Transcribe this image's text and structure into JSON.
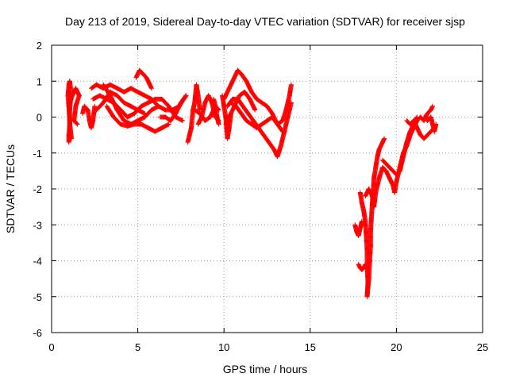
{
  "chart_data": {
    "type": "scatter",
    "title": "Day 213 of 2019, Sidereal Day-to-day VTEC variation (SDTVAR) for receiver sjsp",
    "xlabel": "GPS time / hours",
    "ylabel": "SDTVAR / TECUs",
    "xlim": [
      0,
      25
    ],
    "ylim": [
      -6,
      2
    ],
    "xticks": [
      0,
      5,
      10,
      15,
      20,
      25
    ],
    "yticks": [
      -6,
      -5,
      -4,
      -3,
      -2,
      -1,
      0,
      1,
      2
    ],
    "grid": true,
    "marker": "+",
    "series": [
      {
        "name": "SDTVAR",
        "color": "#ff0000",
        "tracks": [
          [
            [
              1.0,
              -0.7
            ],
            [
              1.0,
              -0.5
            ],
            [
              1.05,
              -0.2
            ],
            [
              1.05,
              0.2
            ],
            [
              1.1,
              0.5
            ],
            [
              1.1,
              0.8
            ],
            [
              1.05,
              1.0
            ],
            [
              1.0,
              0.9
            ],
            [
              0.95,
              0.6
            ],
            [
              1.0,
              0.3
            ],
            [
              1.05,
              -0.1
            ],
            [
              1.1,
              -0.4
            ],
            [
              1.15,
              -0.6
            ]
          ],
          [
            [
              1.0,
              0.3
            ],
            [
              1.2,
              0.6
            ],
            [
              1.4,
              0.8
            ],
            [
              1.6,
              0.6
            ],
            [
              1.4,
              0.3
            ],
            [
              1.3,
              -0.1
            ],
            [
              1.5,
              -0.2
            ]
          ],
          [
            [
              1.8,
              0.1
            ],
            [
              1.9,
              0.3
            ],
            [
              2.1,
              0.2
            ],
            [
              2.2,
              -0.1
            ],
            [
              2.3,
              -0.3
            ],
            [
              2.4,
              -0.1
            ],
            [
              2.5,
              0.3
            ]
          ],
          [
            [
              2.3,
              0.8
            ],
            [
              2.6,
              0.9
            ],
            [
              3.0,
              0.8
            ],
            [
              3.4,
              0.9
            ],
            [
              3.8,
              0.8
            ],
            [
              4.2,
              0.7
            ],
            [
              4.6,
              0.8
            ],
            [
              5.0,
              0.7
            ],
            [
              5.4,
              0.6
            ],
            [
              5.8,
              0.5
            ],
            [
              6.2,
              0.3
            ],
            [
              6.6,
              0.2
            ],
            [
              7.0,
              0.2
            ],
            [
              7.4,
              0.3
            ],
            [
              7.8,
              0.6
            ]
          ],
          [
            [
              2.4,
              0.5
            ],
            [
              2.8,
              0.6
            ],
            [
              3.2,
              0.5
            ],
            [
              3.6,
              0.4
            ],
            [
              4.0,
              0.2
            ],
            [
              4.4,
              0.0
            ],
            [
              4.8,
              0.1
            ],
            [
              5.2,
              0.3
            ],
            [
              5.6,
              0.4
            ],
            [
              6.0,
              0.5
            ],
            [
              6.4,
              0.5
            ],
            [
              6.8,
              0.3
            ],
            [
              7.2,
              0.0
            ],
            [
              7.6,
              -0.1
            ]
          ],
          [
            [
              3.0,
              0.9
            ],
            [
              3.4,
              0.6
            ],
            [
              3.8,
              0.2
            ],
            [
              4.2,
              -0.1
            ],
            [
              4.6,
              -0.2
            ],
            [
              5.0,
              -0.1
            ],
            [
              5.4,
              0.0
            ],
            [
              5.8,
              0.2
            ],
            [
              6.2,
              0.3
            ]
          ],
          [
            [
              3.2,
              0.3
            ],
            [
              3.6,
              0.0
            ],
            [
              4.0,
              -0.2
            ],
            [
              4.4,
              -0.25
            ],
            [
              4.8,
              -0.2
            ],
            [
              5.2,
              -0.2
            ],
            [
              5.6,
              -0.3
            ],
            [
              6.0,
              -0.4
            ],
            [
              6.4,
              -0.3
            ],
            [
              6.8,
              -0.2
            ]
          ],
          [
            [
              2.6,
              0.2
            ],
            [
              3.0,
              0.4
            ],
            [
              3.4,
              0.7
            ],
            [
              3.8,
              0.6
            ],
            [
              4.2,
              0.4
            ],
            [
              4.6,
              0.3
            ],
            [
              5.0,
              0.2
            ],
            [
              5.4,
              0.1
            ]
          ],
          [
            [
              4.9,
              1.1
            ],
            [
              5.1,
              1.3
            ],
            [
              5.3,
              1.2
            ],
            [
              5.5,
              1.1
            ],
            [
              5.7,
              0.9
            ],
            [
              5.8,
              0.8
            ]
          ],
          [
            [
              6.3,
              0.0
            ],
            [
              6.6,
              0.0
            ],
            [
              6.9,
              -0.1
            ],
            [
              7.2,
              0.1
            ],
            [
              7.5,
              0.4
            ],
            [
              7.8,
              0.6
            ]
          ],
          [
            [
              7.9,
              -0.7
            ],
            [
              8.0,
              -0.5
            ],
            [
              8.1,
              -0.3
            ],
            [
              8.2,
              0.2
            ],
            [
              8.3,
              0.4
            ],
            [
              8.4,
              0.9
            ],
            [
              8.5,
              0.6
            ],
            [
              8.6,
              0.2
            ]
          ],
          [
            [
              8.5,
              -0.2
            ],
            [
              8.7,
              0.0
            ],
            [
              8.9,
              0.4
            ],
            [
              9.1,
              0.6
            ],
            [
              9.3,
              0.4
            ],
            [
              9.5,
              0.0
            ],
            [
              9.7,
              -0.1
            ]
          ],
          [
            [
              8.3,
              0.2
            ],
            [
              8.6,
              0.1
            ],
            [
              8.9,
              -0.1
            ],
            [
              9.2,
              0.0
            ],
            [
              9.5,
              0.3
            ],
            [
              9.7,
              0.2
            ]
          ],
          [
            [
              9.4,
              0.5
            ],
            [
              9.5,
              0.3
            ],
            [
              9.6,
              0.0
            ],
            [
              9.7,
              -0.2
            ]
          ],
          [
            [
              9.9,
              0.6
            ],
            [
              10.0,
              0.3
            ],
            [
              10.1,
              0.0
            ],
            [
              10.15,
              -0.3
            ],
            [
              10.2,
              -0.6
            ],
            [
              10.3,
              -0.3
            ],
            [
              10.4,
              0.1
            ]
          ],
          [
            [
              10.0,
              0.5
            ],
            [
              10.3,
              0.8
            ],
            [
              10.6,
              1.1
            ],
            [
              10.8,
              1.3
            ],
            [
              11.0,
              1.2
            ],
            [
              11.3,
              1.0
            ],
            [
              11.6,
              0.7
            ],
            [
              11.9,
              0.5
            ],
            [
              12.2,
              0.4
            ],
            [
              12.5,
              0.3
            ],
            [
              12.8,
              0.1
            ],
            [
              13.1,
              -0.2
            ],
            [
              13.4,
              -0.1
            ],
            [
              13.6,
              0.2
            ],
            [
              13.8,
              0.6
            ],
            [
              13.9,
              0.9
            ]
          ],
          [
            [
              10.2,
              0.3
            ],
            [
              10.5,
              0.5
            ],
            [
              10.8,
              0.5
            ],
            [
              11.1,
              0.3
            ],
            [
              11.4,
              0.1
            ],
            [
              11.7,
              -0.1
            ],
            [
              12.0,
              -0.3
            ],
            [
              12.3,
              -0.5
            ],
            [
              12.6,
              -0.7
            ],
            [
              12.9,
              -0.9
            ],
            [
              13.1,
              -1.1
            ],
            [
              13.3,
              -0.8
            ],
            [
              13.5,
              -0.4
            ],
            [
              13.7,
              0.0
            ],
            [
              13.9,
              0.4
            ]
          ],
          [
            [
              10.4,
              0.4
            ],
            [
              10.7,
              0.3
            ],
            [
              11.0,
              0.1
            ],
            [
              11.3,
              -0.1
            ],
            [
              11.6,
              -0.2
            ],
            [
              11.9,
              -0.3
            ],
            [
              12.2,
              -0.2
            ],
            [
              12.5,
              -0.1
            ],
            [
              12.8,
              0.0
            ],
            [
              13.1,
              -0.2
            ],
            [
              13.4,
              -0.4
            ]
          ],
          [
            [
              10.1,
              -0.2
            ],
            [
              10.3,
              0.0
            ],
            [
              10.6,
              0.3
            ],
            [
              10.9,
              0.6
            ],
            [
              11.2,
              0.7
            ],
            [
              11.5,
              0.5
            ],
            [
              11.8,
              0.2
            ]
          ],
          [
            [
              17.6,
              -3.0
            ],
            [
              17.7,
              -3.2
            ],
            [
              17.8,
              -3.3
            ],
            [
              17.9,
              -3.1
            ],
            [
              18.0,
              -2.9
            ]
          ],
          [
            [
              17.8,
              -4.1
            ],
            [
              17.9,
              -4.2
            ],
            [
              18.0,
              -4.25
            ],
            [
              18.1,
              -4.2
            ],
            [
              18.2,
              -4.1
            ]
          ],
          [
            [
              17.9,
              -2.1
            ],
            [
              18.0,
              -2.4
            ],
            [
              18.1,
              -2.6
            ],
            [
              18.2,
              -2.9
            ],
            [
              18.25,
              -3.3
            ],
            [
              18.3,
              -3.7
            ],
            [
              18.3,
              -4.2
            ],
            [
              18.35,
              -4.6
            ],
            [
              18.3,
              -5.0
            ],
            [
              18.4,
              -4.5
            ],
            [
              18.45,
              -4.0
            ],
            [
              18.5,
              -3.6
            ],
            [
              18.5,
              -3.2
            ],
            [
              18.55,
              -2.8
            ],
            [
              18.6,
              -2.4
            ],
            [
              18.65,
              -2.1
            ],
            [
              18.7,
              -1.7
            ],
            [
              18.8,
              -1.4
            ],
            [
              18.9,
              -1.1
            ],
            [
              19.0,
              -0.9
            ],
            [
              19.2,
              -0.7
            ],
            [
              19.3,
              -0.6
            ]
          ],
          [
            [
              18.2,
              -2.2
            ],
            [
              18.4,
              -2.0
            ],
            [
              18.6,
              -2.2
            ],
            [
              18.7,
              -2.5
            ],
            [
              18.8,
              -2.1
            ],
            [
              19.0,
              -1.7
            ],
            [
              19.2,
              -1.4
            ],
            [
              19.4,
              -1.5
            ],
            [
              19.6,
              -1.7
            ],
            [
              19.8,
              -1.9
            ],
            [
              19.9,
              -2.1
            ],
            [
              20.0,
              -1.8
            ],
            [
              20.2,
              -1.4
            ],
            [
              20.4,
              -1.0
            ],
            [
              20.6,
              -0.8
            ],
            [
              20.8,
              -0.5
            ],
            [
              21.0,
              -0.3
            ],
            [
              21.2,
              -0.1
            ],
            [
              21.4,
              0.0
            ],
            [
              21.6,
              -0.1
            ],
            [
              21.8,
              0.1
            ],
            [
              22.0,
              0.2
            ],
            [
              22.1,
              0.3
            ]
          ],
          [
            [
              19.2,
              -1.2
            ],
            [
              19.4,
              -1.3
            ],
            [
              19.6,
              -1.4
            ],
            [
              19.8,
              -1.5
            ],
            [
              20.0,
              -1.6
            ],
            [
              20.2,
              -1.5
            ],
            [
              20.4,
              -1.1
            ],
            [
              20.6,
              -0.7
            ],
            [
              20.8,
              -0.4
            ],
            [
              21.0,
              -0.2
            ],
            [
              21.2,
              0.0
            ]
          ],
          [
            [
              20.6,
              -0.1
            ],
            [
              20.8,
              -0.2
            ],
            [
              21.0,
              -0.1
            ],
            [
              21.2,
              -0.3
            ],
            [
              21.4,
              -0.5
            ],
            [
              21.6,
              -0.6
            ],
            [
              21.8,
              -0.5
            ],
            [
              22.0,
              -0.4
            ],
            [
              22.2,
              -0.3
            ]
          ],
          [
            [
              21.6,
              0.0
            ],
            [
              21.8,
              -0.1
            ],
            [
              22.0,
              0.0
            ],
            [
              22.1,
              -0.2
            ],
            [
              22.2,
              -0.4
            ],
            [
              22.3,
              -0.2
            ]
          ]
        ]
      }
    ]
  }
}
